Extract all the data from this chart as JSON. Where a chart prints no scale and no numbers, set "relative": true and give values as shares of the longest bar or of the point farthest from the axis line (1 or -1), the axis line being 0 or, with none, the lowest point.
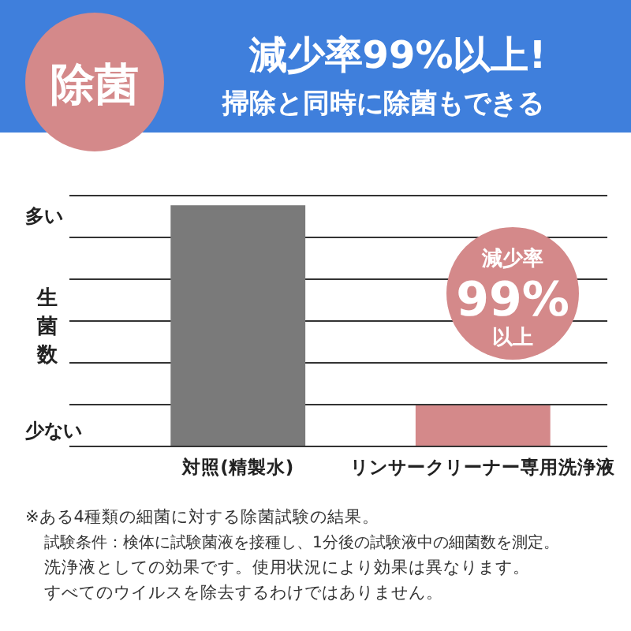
{
  "chart_data": {
    "type": "bar",
    "relative": true,
    "title": "減少率99%以上!",
    "subtitle": "掃除と同時に除菌もできる",
    "ylabel": "生菌数",
    "categories": [
      "対照(精製水)",
      "リンサークリーナー専用洗浄液"
    ],
    "values": [
      1,
      0.17
    ],
    "colors": [
      "#7a7a7a",
      "#d4898a"
    ],
    "grid": true,
    "annotations": [
      "除菌",
      "多い",
      "少ない",
      "減少率",
      "99%",
      "以上",
      "※ある4種類の細菌に対する除菌試験の結果。",
      "試験条件：検体に試験菌液を接種し、1分後の試験液中の細菌数を測定。",
      "洗浄液としての効果です。使用状況により効果は異なります。",
      "すべてのウイルスを除去するわけではありません。"
    ]
  }
}
